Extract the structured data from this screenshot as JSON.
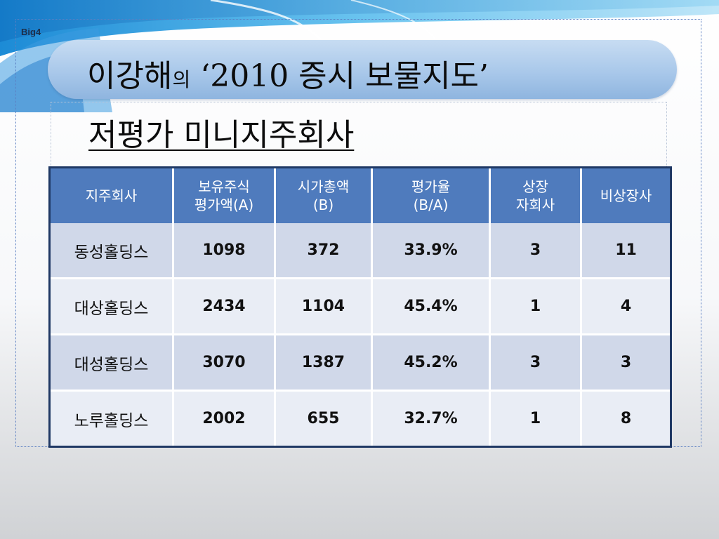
{
  "brand": "Big4",
  "title": {
    "name": "이강해",
    "particle": "의",
    "rest": "‘2010 증시 보물지도’"
  },
  "subtitle": "저평가 미니지주회사",
  "table": {
    "headers": [
      {
        "line1": "지주회사",
        "line2": ""
      },
      {
        "line1": "보유주식",
        "line2": "평가액(A)"
      },
      {
        "line1": "시가총액",
        "line2": "(B)"
      },
      {
        "line1": "평가율",
        "line2": "(B/A)"
      },
      {
        "line1": "상장",
        "line2": "자회사"
      },
      {
        "line1": "비상장사",
        "line2": ""
      }
    ],
    "rows": [
      [
        "동성홀딩스",
        "1098",
        "372",
        "33.9%",
        "3",
        "11"
      ],
      [
        "대상홀딩스",
        "2434",
        "1104",
        "45.4%",
        "1",
        "4"
      ],
      [
        "대성홀딩스",
        "3070",
        "1387",
        "45.2%",
        "3",
        "3"
      ],
      [
        "노루홀딩스",
        "2002",
        "655",
        "32.7%",
        "1",
        "8"
      ]
    ]
  },
  "colors": {
    "header_bg": "#4f7bbd",
    "row_dark": "#d0d8e9",
    "row_light": "#e9edf5",
    "table_border": "#1f3864",
    "title_pill": "#a9c8ea"
  }
}
